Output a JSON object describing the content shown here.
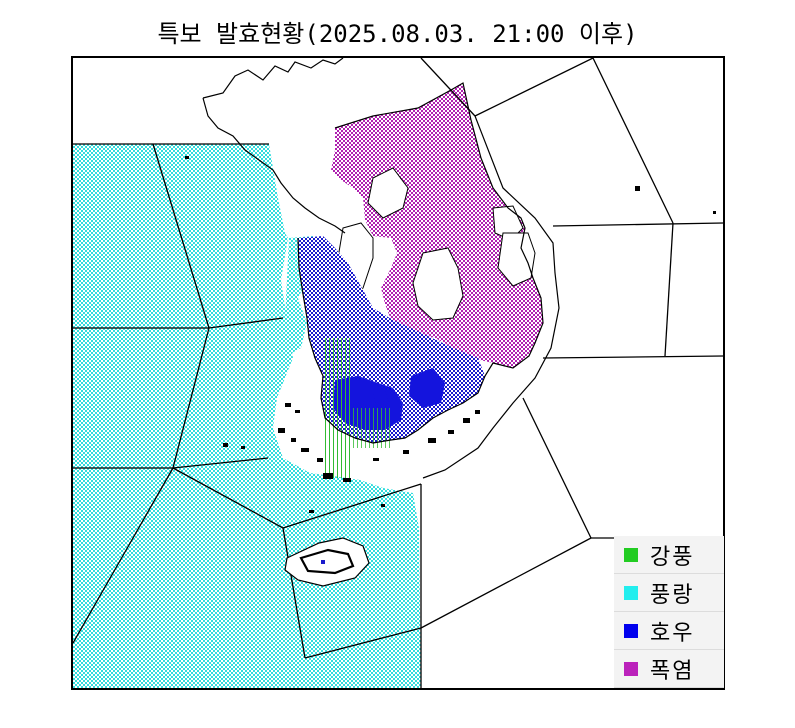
{
  "title": "특보 발효현황(2025.08.03. 21:00 이후)",
  "legend": [
    {
      "label": "강풍",
      "color": "#22cc22"
    },
    {
      "label": "풍랑",
      "color": "#22eeee"
    },
    {
      "label": "호우",
      "color": "#0000ee"
    },
    {
      "label": "폭염",
      "color": "#bb22bb"
    }
  ],
  "colors": {
    "sea_warning": "#5fe0e0",
    "heat_wave": "#b040b0",
    "heavy_rain": "#2222dd",
    "strong_wind": "#44bb44",
    "land_plain": "#ffffff",
    "outline": "#000000"
  }
}
